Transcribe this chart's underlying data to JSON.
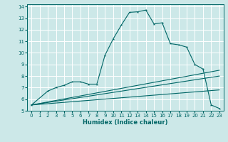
{
  "xlabel": "Humidex (Indice chaleur)",
  "bg_color": "#cce8e8",
  "grid_color": "#ffffff",
  "line_color": "#006666",
  "xlim": [
    -0.5,
    23.5
  ],
  "ylim": [
    5,
    14.2
  ],
  "xticks": [
    0,
    1,
    2,
    3,
    4,
    5,
    6,
    7,
    8,
    9,
    10,
    11,
    12,
    13,
    14,
    15,
    16,
    17,
    18,
    19,
    20,
    21,
    22,
    23
  ],
  "yticks": [
    5,
    6,
    7,
    8,
    9,
    10,
    11,
    12,
    13,
    14
  ],
  "series": [
    [
      0,
      5.5
    ],
    [
      2,
      6.7
    ],
    [
      3,
      7.0
    ],
    [
      4,
      7.2
    ],
    [
      5,
      7.5
    ],
    [
      6,
      7.5
    ],
    [
      7,
      7.3
    ],
    [
      8,
      7.3
    ],
    [
      9,
      9.8
    ],
    [
      10,
      11.2
    ],
    [
      11,
      12.4
    ],
    [
      12,
      13.5
    ],
    [
      13,
      13.55
    ],
    [
      14,
      13.7
    ],
    [
      15,
      12.5
    ],
    [
      16,
      12.6
    ],
    [
      17,
      10.8
    ],
    [
      18,
      10.7
    ],
    [
      19,
      10.5
    ],
    [
      20,
      9.0
    ],
    [
      21,
      8.6
    ],
    [
      22,
      5.5
    ],
    [
      23,
      5.2
    ]
  ],
  "series2": [
    [
      0,
      5.5
    ],
    [
      23,
      8.5
    ]
  ],
  "series3": [
    [
      0,
      5.5
    ],
    [
      23,
      8.0
    ]
  ],
  "series4": [
    [
      0,
      5.5
    ],
    [
      23,
      6.8
    ]
  ],
  "tick_fontsize": 5,
  "label_fontsize": 6,
  "linewidth": 0.8,
  "markersize": 2.5
}
